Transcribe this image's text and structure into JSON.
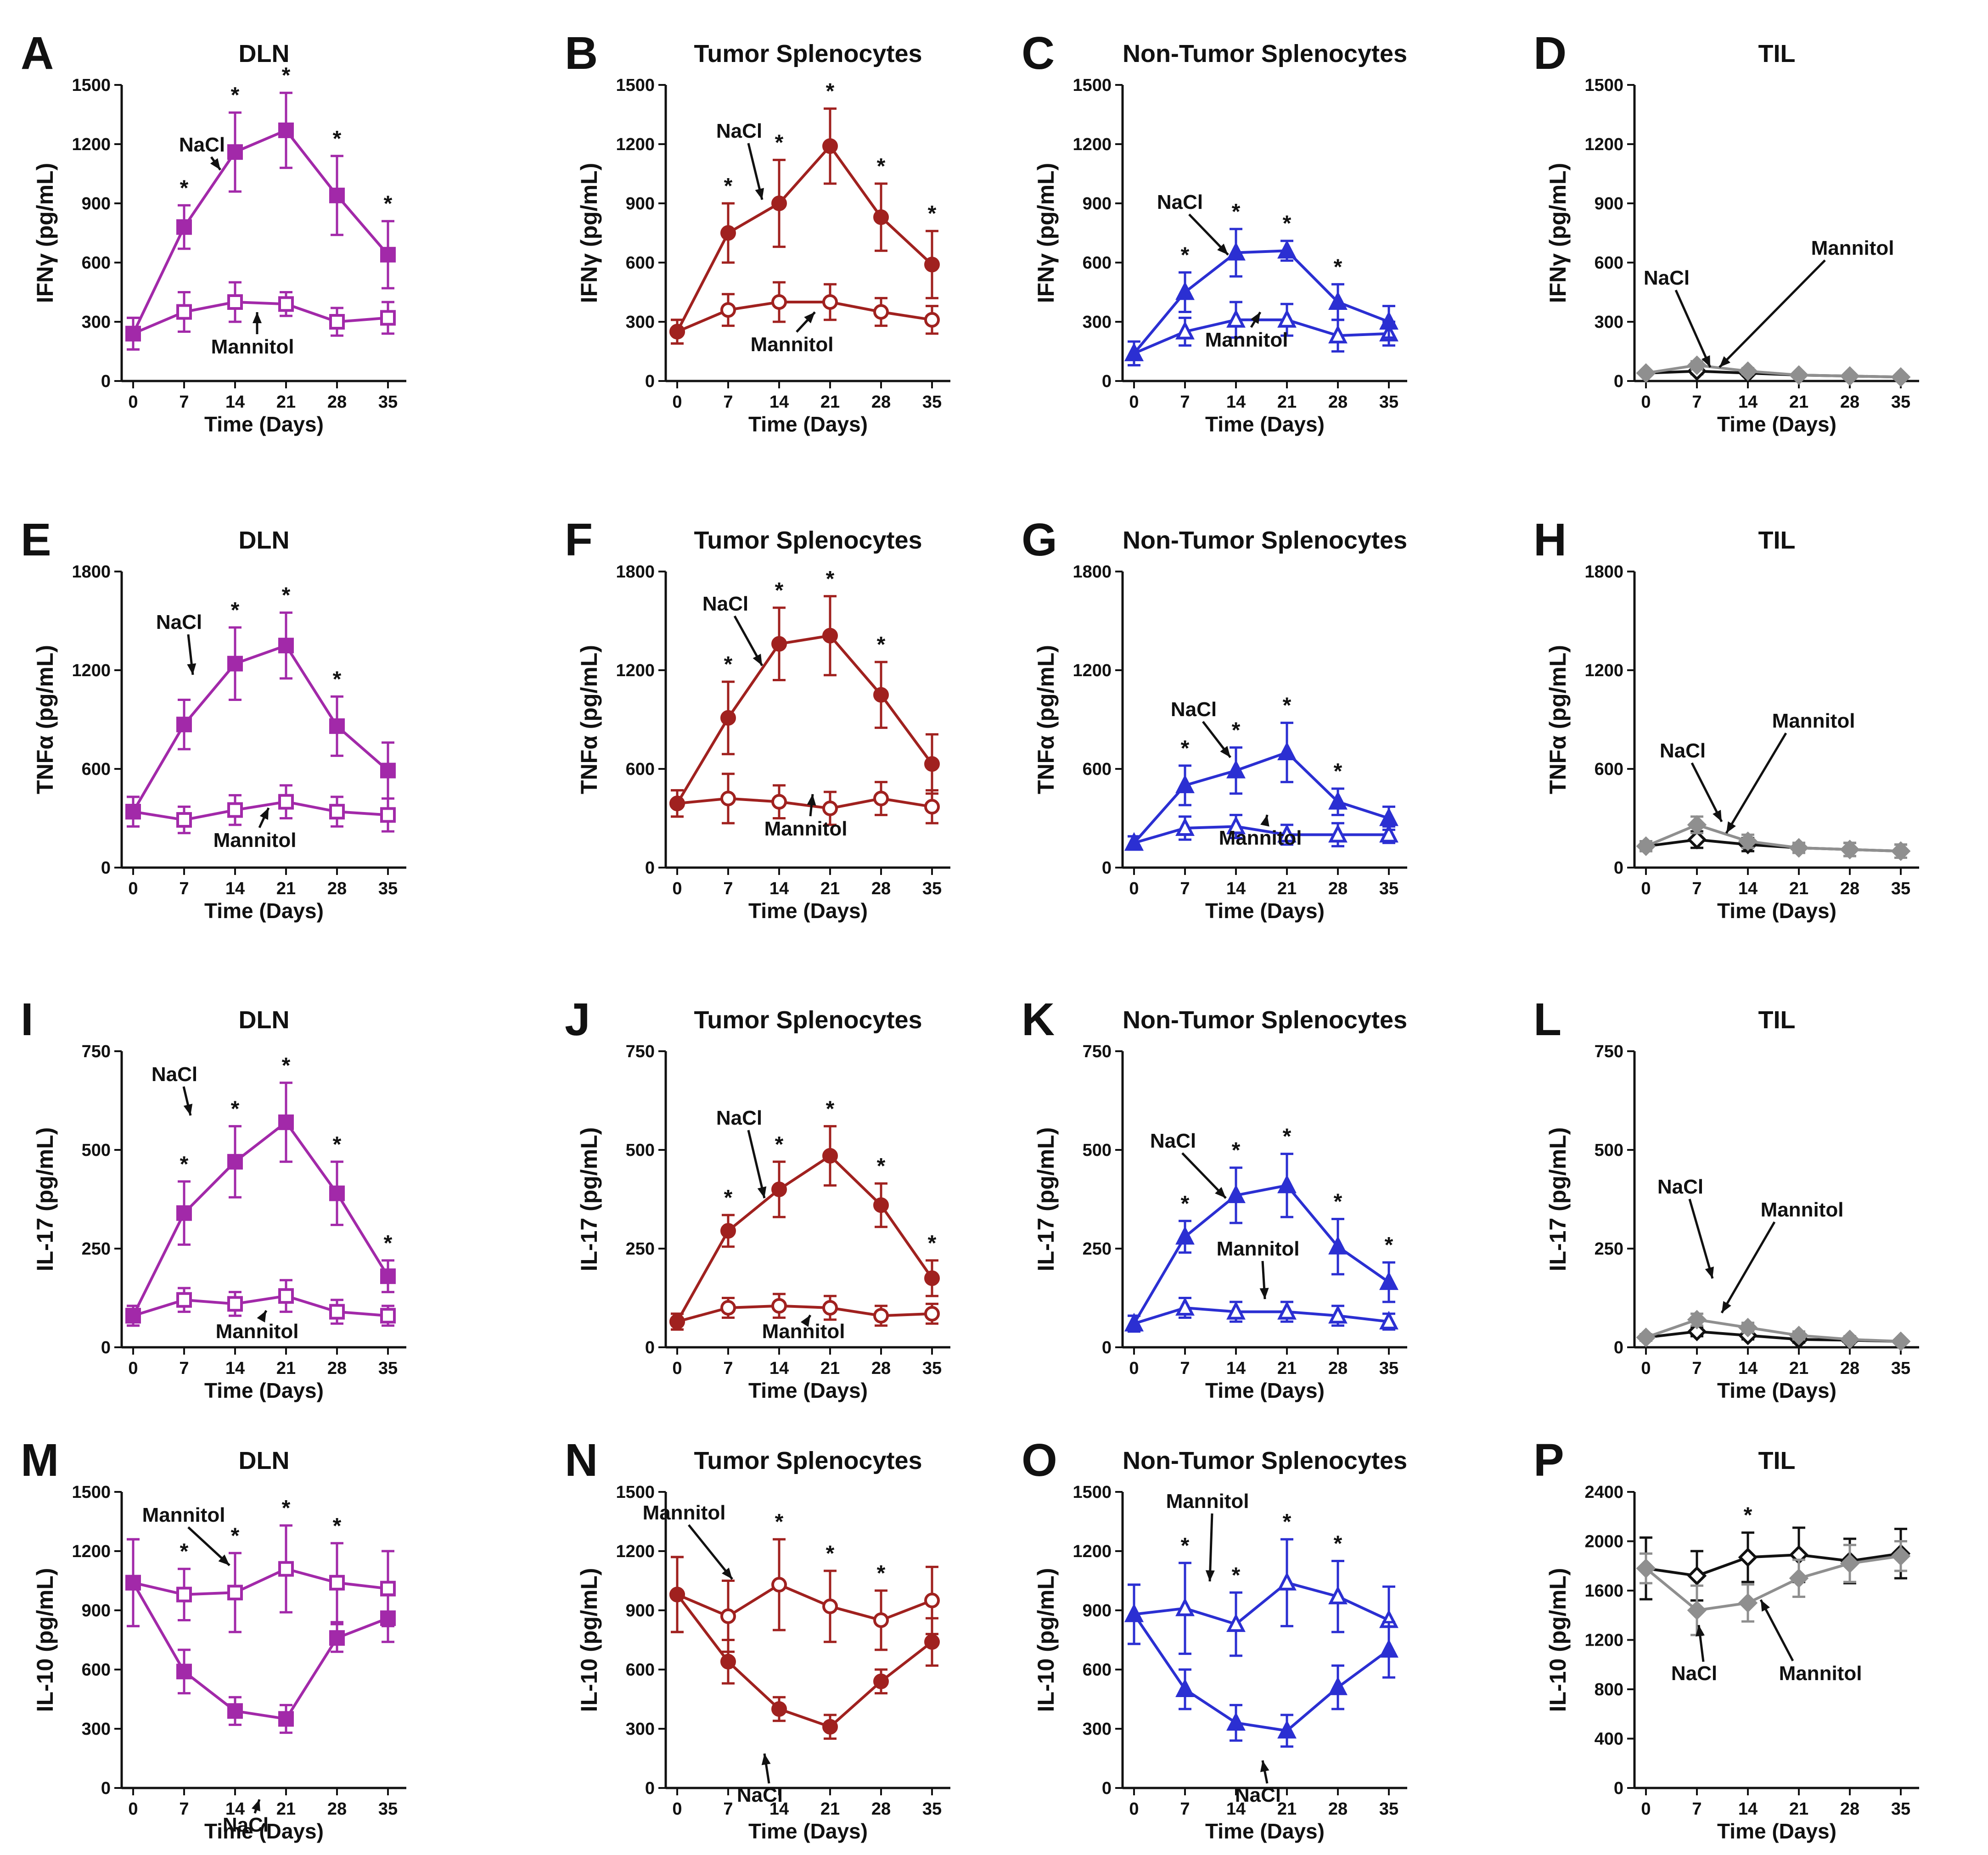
{
  "figure": {
    "x_label": "Time (Days)",
    "days": [
      0,
      7,
      14,
      21,
      28,
      35
    ],
    "x_ticks": [
      "0",
      "7",
      "14",
      "21",
      "28",
      "35"
    ],
    "annotation_nacl": "NaCl",
    "annotation_mannitol": "Mannitol",
    "significance_mark": "*",
    "colors": {
      "DLN": "#a229a9",
      "Tumor Splenocytes": "#a0211f",
      "Non-Tumor Splenocytes": "#2b2fd2",
      "TIL_nacl": "#8f8f8f",
      "TIL_mannitol": "#111111"
    }
  },
  "chart_data": [
    {
      "id": "A",
      "type": "line",
      "title": "DLN",
      "ylabel": "IFNγ (pg/mL)",
      "ylim": [
        0,
        1500
      ],
      "yticks": [
        0,
        300,
        600,
        900,
        1200,
        1500
      ],
      "tissue": "DLN",
      "nacl_marker": "square-filled",
      "mann_marker": "square-open",
      "series": [
        {
          "name": "NaCl",
          "values": [
            240,
            780,
            1160,
            1270,
            940,
            640
          ],
          "errors": [
            80,
            110,
            200,
            190,
            200,
            170
          ]
        },
        {
          "name": "Mannitol",
          "values": [
            240,
            350,
            400,
            390,
            300,
            320
          ],
          "errors": [
            80,
            100,
            100,
            60,
            70,
            80
          ]
        }
      ],
      "significant_days": [
        7,
        14,
        21,
        28,
        35
      ]
    },
    {
      "id": "B",
      "type": "line",
      "title": "Tumor Splenocytes",
      "ylabel": "IFNγ (pg/mL)",
      "ylim": [
        0,
        1500
      ],
      "yticks": [
        0,
        300,
        600,
        900,
        1200,
        1500
      ],
      "tissue": "Tumor Splenocytes",
      "nacl_marker": "circle-filled",
      "mann_marker": "circle-open",
      "series": [
        {
          "name": "NaCl",
          "values": [
            250,
            750,
            900,
            1190,
            830,
            590
          ],
          "errors": [
            60,
            150,
            220,
            190,
            170,
            170
          ]
        },
        {
          "name": "Mannitol",
          "values": [
            250,
            360,
            400,
            400,
            350,
            310
          ],
          "errors": [
            60,
            80,
            100,
            90,
            70,
            70
          ]
        }
      ],
      "significant_days": [
        7,
        14,
        21,
        28,
        35
      ]
    },
    {
      "id": "C",
      "type": "line",
      "title": "Non-Tumor Splenocytes",
      "ylabel": "IFNγ (pg/mL)",
      "ylim": [
        0,
        1500
      ],
      "yticks": [
        0,
        300,
        600,
        900,
        1200,
        1500
      ],
      "tissue": "Non-Tumor Splenocytes",
      "nacl_marker": "triangle-filled",
      "mann_marker": "triangle-open",
      "series": [
        {
          "name": "NaCl",
          "values": [
            140,
            450,
            650,
            660,
            400,
            300
          ],
          "errors": [
            60,
            100,
            120,
            50,
            90,
            80
          ]
        },
        {
          "name": "Mannitol",
          "values": [
            140,
            250,
            310,
            310,
            230,
            240
          ],
          "errors": [
            60,
            70,
            90,
            80,
            80,
            60
          ]
        }
      ],
      "significant_days": [
        7,
        14,
        21,
        28
      ]
    },
    {
      "id": "D",
      "type": "line",
      "title": "TIL",
      "ylabel": "IFNγ (pg/mL)",
      "ylim": [
        0,
        1500
      ],
      "yticks": [
        0,
        300,
        600,
        900,
        1200,
        1500
      ],
      "tissue": "TIL",
      "nacl_marker": "diamond-filled",
      "mann_marker": "diamond-open",
      "series": [
        {
          "name": "NaCl",
          "values": [
            40,
            80,
            50,
            30,
            25,
            20
          ],
          "errors": [
            10,
            20,
            15,
            10,
            8,
            8
          ]
        },
        {
          "name": "Mannitol",
          "values": [
            40,
            50,
            40,
            30,
            25,
            20
          ],
          "errors": [
            10,
            15,
            12,
            10,
            8,
            8
          ]
        }
      ],
      "significant_days": []
    },
    {
      "id": "E",
      "type": "line",
      "title": "DLN",
      "ylabel": "TNFα (pg/mL)",
      "ylim": [
        0,
        1800
      ],
      "yticks": [
        0,
        600,
        1200,
        1800
      ],
      "tissue": "DLN",
      "nacl_marker": "square-filled",
      "mann_marker": "square-open",
      "series": [
        {
          "name": "NaCl",
          "values": [
            340,
            870,
            1240,
            1350,
            860,
            590
          ],
          "errors": [
            90,
            150,
            220,
            200,
            180,
            170
          ]
        },
        {
          "name": "Mannitol",
          "values": [
            340,
            290,
            350,
            400,
            340,
            320
          ],
          "errors": [
            90,
            80,
            90,
            100,
            90,
            100
          ]
        }
      ],
      "significant_days": [
        14,
        21,
        28
      ]
    },
    {
      "id": "F",
      "type": "line",
      "title": "Tumor Splenocytes",
      "ylabel": "TNFα (pg/mL)",
      "ylim": [
        0,
        1800
      ],
      "yticks": [
        0,
        600,
        1200,
        1800
      ],
      "tissue": "Tumor Splenocytes",
      "nacl_marker": "circle-filled",
      "mann_marker": "circle-open",
      "series": [
        {
          "name": "NaCl",
          "values": [
            390,
            910,
            1360,
            1410,
            1050,
            630
          ],
          "errors": [
            80,
            220,
            220,
            240,
            200,
            180
          ]
        },
        {
          "name": "Mannitol",
          "values": [
            390,
            420,
            400,
            360,
            420,
            370
          ],
          "errors": [
            80,
            150,
            100,
            100,
            100,
            100
          ]
        }
      ],
      "significant_days": [
        7,
        14,
        21,
        28
      ]
    },
    {
      "id": "G",
      "type": "line",
      "title": "Non-Tumor Splenocytes",
      "ylabel": "TNFα (pg/mL)",
      "ylim": [
        0,
        1800
      ],
      "yticks": [
        0,
        600,
        1200,
        1800
      ],
      "tissue": "Non-Tumor Splenocytes",
      "nacl_marker": "triangle-filled",
      "mann_marker": "triangle-open",
      "series": [
        {
          "name": "NaCl",
          "values": [
            150,
            500,
            590,
            700,
            400,
            300
          ],
          "errors": [
            40,
            120,
            140,
            180,
            80,
            70
          ]
        },
        {
          "name": "Mannitol",
          "values": [
            150,
            240,
            250,
            200,
            200,
            200
          ],
          "errors": [
            40,
            70,
            70,
            60,
            70,
            50
          ]
        }
      ],
      "significant_days": [
        7,
        14,
        21,
        28
      ]
    },
    {
      "id": "H",
      "type": "line",
      "title": "TIL",
      "ylabel": "TNFα (pg/mL)",
      "ylim": [
        0,
        1800
      ],
      "yticks": [
        0,
        600,
        1200,
        1800
      ],
      "tissue": "TIL",
      "nacl_marker": "diamond-filled",
      "mann_marker": "diamond-open",
      "series": [
        {
          "name": "NaCl",
          "values": [
            130,
            260,
            160,
            120,
            110,
            100
          ],
          "errors": [
            30,
            50,
            40,
            30,
            40,
            40
          ]
        },
        {
          "name": "Mannitol",
          "values": [
            130,
            170,
            140,
            120,
            110,
            100
          ],
          "errors": [
            30,
            50,
            40,
            30,
            40,
            40
          ]
        }
      ],
      "significant_days": []
    },
    {
      "id": "I",
      "type": "line",
      "title": "DLN",
      "ylabel": "IL-17 (pg/mL)",
      "ylim": [
        0,
        750
      ],
      "yticks": [
        0,
        250,
        500,
        750
      ],
      "tissue": "DLN",
      "nacl_marker": "square-filled",
      "mann_marker": "square-open",
      "series": [
        {
          "name": "NaCl",
          "values": [
            80,
            340,
            470,
            570,
            390,
            180
          ],
          "errors": [
            25,
            80,
            90,
            100,
            80,
            40
          ]
        },
        {
          "name": "Mannitol",
          "values": [
            80,
            120,
            110,
            130,
            90,
            80
          ],
          "errors": [
            25,
            30,
            30,
            40,
            30,
            25
          ]
        }
      ],
      "significant_days": [
        7,
        14,
        21,
        28,
        35
      ]
    },
    {
      "id": "J",
      "type": "line",
      "title": "Tumor Splenocytes",
      "ylabel": "IL-17 (pg/mL)",
      "ylim": [
        0,
        750
      ],
      "yticks": [
        0,
        250,
        500,
        750
      ],
      "tissue": "Tumor Splenocytes",
      "nacl_marker": "circle-filled",
      "mann_marker": "circle-open",
      "series": [
        {
          "name": "NaCl",
          "values": [
            65,
            295,
            400,
            485,
            360,
            175
          ],
          "errors": [
            20,
            40,
            70,
            75,
            55,
            45
          ]
        },
        {
          "name": "Mannitol",
          "values": [
            65,
            100,
            105,
            100,
            80,
            85
          ],
          "errors": [
            20,
            25,
            30,
            30,
            25,
            25
          ]
        }
      ],
      "significant_days": [
        7,
        14,
        21,
        28,
        35
      ]
    },
    {
      "id": "K",
      "type": "line",
      "title": "Non-Tumor Splenocytes",
      "ylabel": "IL-17 (pg/mL)",
      "ylim": [
        0,
        750
      ],
      "yticks": [
        0,
        250,
        500,
        750
      ],
      "tissue": "Non-Tumor Splenocytes",
      "nacl_marker": "triangle-filled",
      "mann_marker": "triangle-open",
      "series": [
        {
          "name": "NaCl",
          "values": [
            60,
            280,
            385,
            410,
            255,
            165
          ],
          "errors": [
            20,
            40,
            70,
            80,
            70,
            50
          ]
        },
        {
          "name": "Mannitol",
          "values": [
            60,
            100,
            90,
            90,
            80,
            65
          ],
          "errors": [
            20,
            25,
            25,
            25,
            25,
            20
          ]
        }
      ],
      "significant_days": [
        7,
        14,
        21,
        28,
        35
      ]
    },
    {
      "id": "L",
      "type": "line",
      "title": "TIL",
      "ylabel": "IL-17 (pg/mL)",
      "ylim": [
        0,
        750
      ],
      "yticks": [
        0,
        250,
        500,
        750
      ],
      "tissue": "TIL",
      "nacl_marker": "diamond-filled",
      "mann_marker": "diamond-open",
      "series": [
        {
          "name": "NaCl",
          "values": [
            25,
            70,
            50,
            30,
            20,
            15
          ],
          "errors": [
            8,
            15,
            12,
            10,
            8,
            6
          ]
        },
        {
          "name": "Mannitol",
          "values": [
            25,
            40,
            30,
            20,
            18,
            15
          ],
          "errors": [
            8,
            12,
            10,
            8,
            6,
            6
          ]
        }
      ],
      "significant_days": []
    },
    {
      "id": "M",
      "type": "line",
      "title": "DLN",
      "ylabel": "IL-10 (pg/mL)",
      "ylim": [
        0,
        1500
      ],
      "yticks": [
        0,
        300,
        600,
        900,
        1200,
        1500
      ],
      "tissue": "DLN",
      "nacl_marker": "square-filled",
      "mann_marker": "square-open",
      "series": [
        {
          "name": "NaCl",
          "values": [
            1040,
            590,
            390,
            350,
            760,
            860
          ],
          "errors": [
            220,
            110,
            70,
            70,
            70,
            120
          ]
        },
        {
          "name": "Mannitol",
          "values": [
            1040,
            980,
            990,
            1110,
            1040,
            1010
          ],
          "errors": [
            220,
            130,
            200,
            220,
            200,
            190
          ]
        }
      ],
      "significant_days": [
        7,
        14,
        21,
        28
      ]
    },
    {
      "id": "N",
      "type": "line",
      "title": "Tumor Splenocytes",
      "ylabel": "IL-10 (pg/mL)",
      "ylim": [
        0,
        1500
      ],
      "yticks": [
        0,
        300,
        600,
        900,
        1200,
        1500
      ],
      "tissue": "Tumor Splenocytes",
      "nacl_marker": "circle-filled",
      "mann_marker": "circle-open",
      "series": [
        {
          "name": "NaCl",
          "values": [
            980,
            640,
            400,
            310,
            540,
            740
          ],
          "errors": [
            190,
            110,
            60,
            60,
            60,
            120
          ]
        },
        {
          "name": "Mannitol",
          "values": [
            980,
            870,
            1030,
            920,
            850,
            950
          ],
          "errors": [
            190,
            180,
            230,
            180,
            150,
            170
          ]
        }
      ],
      "significant_days": [
        14,
        21,
        28
      ]
    },
    {
      "id": "O",
      "type": "line",
      "title": "Non-Tumor Splenocytes",
      "ylabel": "IL-10 (pg/mL)",
      "ylim": [
        0,
        1500
      ],
      "yticks": [
        0,
        300,
        600,
        900,
        1200,
        1500
      ],
      "tissue": "Non-Tumor Splenocytes",
      "nacl_marker": "triangle-filled",
      "mann_marker": "triangle-open",
      "series": [
        {
          "name": "NaCl",
          "values": [
            880,
            500,
            330,
            290,
            510,
            700
          ],
          "errors": [
            150,
            100,
            90,
            80,
            110,
            140
          ]
        },
        {
          "name": "Mannitol",
          "values": [
            880,
            910,
            830,
            1040,
            970,
            850
          ],
          "errors": [
            150,
            230,
            160,
            220,
            180,
            170
          ]
        }
      ],
      "significant_days": [
        7,
        14,
        21,
        28
      ]
    },
    {
      "id": "P",
      "type": "line",
      "title": "TIL",
      "ylabel": "IL-10 (pg/mL)",
      "ylim": [
        0,
        2400
      ],
      "yticks": [
        0,
        400,
        800,
        1200,
        1600,
        2000,
        2400
      ],
      "tissue": "TIL",
      "nacl_marker": "diamond-filled",
      "mann_marker": "diamond-open",
      "series": [
        {
          "name": "NaCl",
          "values": [
            1780,
            1440,
            1500,
            1700,
            1820,
            1880
          ],
          "errors": [
            120,
            200,
            150,
            150,
            150,
            120
          ]
        },
        {
          "name": "Mannitol",
          "values": [
            1780,
            1720,
            1870,
            1890,
            1840,
            1900
          ],
          "errors": [
            250,
            200,
            200,
            220,
            180,
            200
          ]
        }
      ],
      "significant_days": [
        14
      ]
    }
  ]
}
